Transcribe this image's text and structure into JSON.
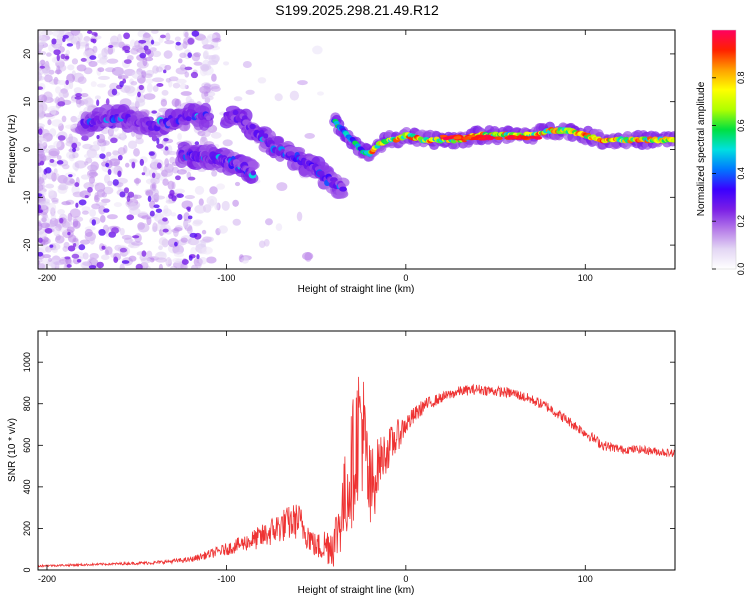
{
  "figure": {
    "title": "S199.2025.298.21.49.R12"
  },
  "chart_data": [
    {
      "type": "heatmap",
      "title": "S199.2025.298.21.49.R12",
      "xlabel": "Height of straight line (km)",
      "ylabel": "Frequency (Hz)",
      "xlim": [
        -205,
        150
      ],
      "ylim": [
        -25,
        25
      ],
      "xticks": [
        -200,
        -100,
        0,
        100
      ],
      "yticks": [
        -20,
        -10,
        0,
        10,
        20
      ],
      "colorbar": {
        "label": "Normalized spectral amplitude",
        "range": [
          0,
          1
        ],
        "ticks": [
          0.0,
          0.2,
          0.4,
          0.6,
          0.8
        ],
        "colormap": [
          "#ffffff",
          "#e3d6f4",
          "#b57ae8",
          "#7a1ee6",
          "#3a00ff",
          "#0077ff",
          "#00e0e0",
          "#00e040",
          "#b0ff00",
          "#ffff00",
          "#ffa000",
          "#ff2000",
          "#ff0060"
        ]
      },
      "ridge_segments": [
        {
          "x": [
            -180,
            -165,
            -150,
            -140,
            -130,
            -120,
            -110
          ],
          "freq": [
            5,
            7,
            6,
            5,
            6,
            7,
            7
          ],
          "peak_amplitude": 0.4
        },
        {
          "x": [
            -125,
            -115,
            -105,
            -95,
            -85
          ],
          "freq": [
            -1,
            -1.5,
            -2,
            -3,
            -5
          ],
          "peak_amplitude": 0.35
        },
        {
          "x": [
            -100,
            -95,
            -90,
            -85,
            -80,
            -75,
            -70,
            -65,
            -60,
            -55,
            -50,
            -45,
            -40,
            -35
          ],
          "freq": [
            7,
            7,
            6,
            4,
            3,
            1,
            0,
            -1,
            -2,
            -3,
            -4,
            -6,
            -7,
            -8
          ],
          "peak_amplitude": 0.4
        },
        {
          "x": [
            -40,
            -35,
            -30,
            -25,
            -20,
            -15,
            -10,
            -5,
            0,
            10,
            20,
            30,
            40,
            50,
            60,
            70,
            80,
            90,
            100,
            110,
            120,
            130,
            140,
            150
          ],
          "freq": [
            6,
            4,
            2,
            0,
            -1,
            1,
            2,
            2,
            3,
            2,
            2,
            2,
            3,
            3,
            3,
            3,
            4,
            4,
            3,
            2,
            2,
            2,
            2,
            2
          ],
          "peak_amplitude": 1.0
        }
      ]
    },
    {
      "type": "line",
      "xlabel": "Height of straight line (km)",
      "ylabel": "SNR (10 * v/v)",
      "xlim": [
        -205,
        150
      ],
      "ylim": [
        0,
        1150
      ],
      "xticks": [
        -200,
        -100,
        0,
        100
      ],
      "yticks": [
        0,
        200,
        400,
        600,
        800,
        1000
      ],
      "series": [
        {
          "name": "SNR",
          "color": "#ee3333",
          "x": [
            -205,
            -180,
            -160,
            -140,
            -120,
            -100,
            -90,
            -80,
            -70,
            -60,
            -50,
            -40,
            -35,
            -30,
            -25,
            -20,
            -15,
            -10,
            -5,
            0,
            10,
            20,
            30,
            40,
            50,
            60,
            70,
            80,
            90,
            100,
            110,
            120,
            130,
            140,
            150
          ],
          "y": [
            20,
            25,
            30,
            35,
            50,
            100,
            130,
            160,
            210,
            240,
            110,
            130,
            300,
            500,
            750,
            350,
            520,
            580,
            640,
            700,
            790,
            830,
            860,
            870,
            860,
            850,
            820,
            780,
            720,
            660,
            600,
            580,
            580,
            570,
            560
          ],
          "noise_amplitude": [
            5,
            5,
            6,
            8,
            12,
            30,
            40,
            60,
            80,
            90,
            60,
            120,
            200,
            300,
            350,
            250,
            120,
            100,
            80,
            50,
            35,
            25,
            25,
            25,
            25,
            25,
            25,
            25,
            25,
            25,
            25,
            20,
            20,
            20,
            20
          ]
        }
      ]
    }
  ]
}
